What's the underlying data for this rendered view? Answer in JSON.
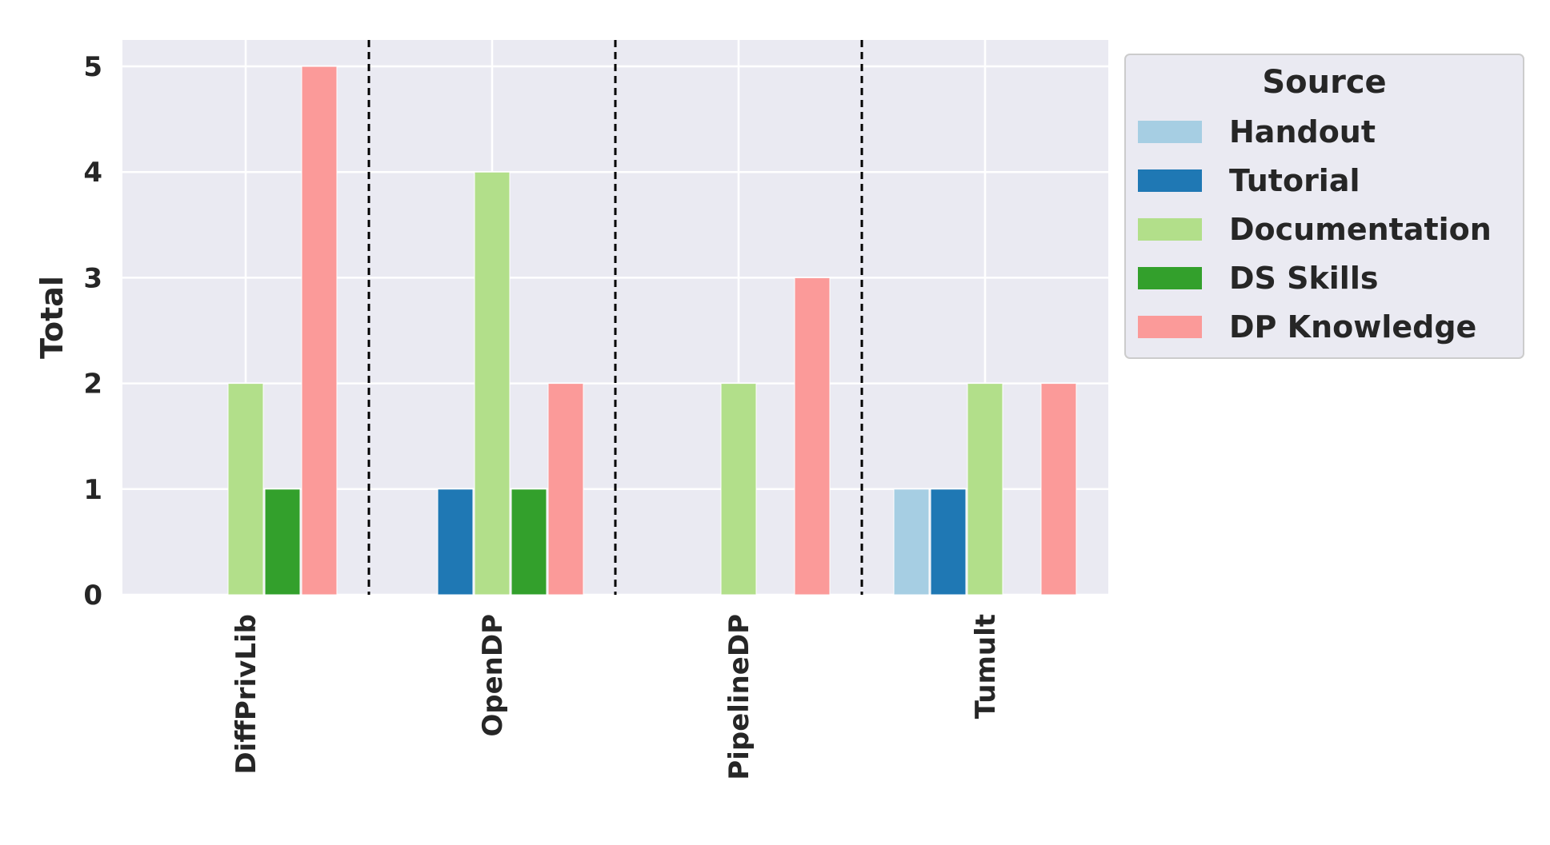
{
  "chart_data": {
    "type": "bar",
    "categories": [
      "DiffPrivLib",
      "OpenDP",
      "PipelineDP",
      "Tumult"
    ],
    "series": [
      {
        "name": "Handout",
        "color": "#a6cee3",
        "values": [
          0,
          0,
          0,
          1
        ]
      },
      {
        "name": "Tutorial",
        "color": "#1f78b4",
        "values": [
          0,
          1,
          0,
          1
        ]
      },
      {
        "name": "Documentation",
        "color": "#b2df8a",
        "values": [
          2,
          4,
          2,
          2
        ]
      },
      {
        "name": "DS Skills",
        "color": "#33a02c",
        "values": [
          1,
          1,
          0,
          0
        ]
      },
      {
        "name": "DP Knowledge",
        "color": "#fb9a99",
        "values": [
          5,
          2,
          3,
          2
        ]
      }
    ],
    "title": "",
    "xlabel": "",
    "ylabel": "Total",
    "ylim": [
      0,
      5.25
    ],
    "yticks": [
      "0",
      "1",
      "2",
      "3",
      "4",
      "5"
    ],
    "grid": true,
    "group_separators": "dashed",
    "legend": {
      "title": "Source",
      "position": "right-outside-top"
    }
  }
}
